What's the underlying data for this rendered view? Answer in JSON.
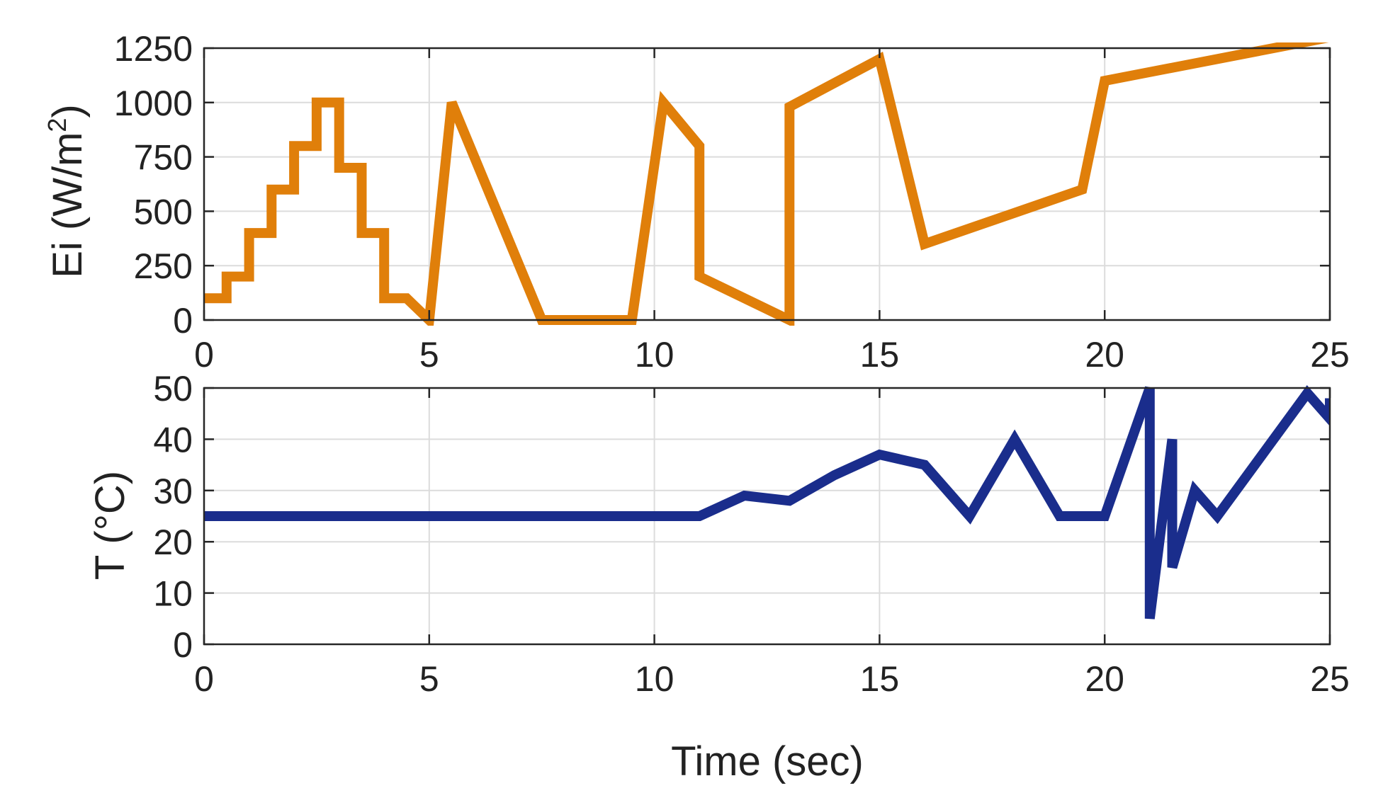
{
  "chart_data": [
    {
      "type": "line",
      "ylabel": "Ei (W/m2)",
      "ylabel_parts": {
        "pre": "Ei (W/m",
        "sup": "2",
        "post": ")"
      },
      "xlabel": "",
      "xlim": [
        0,
        25
      ],
      "ylim": [
        0,
        1250
      ],
      "xticks": [
        0,
        5,
        10,
        15,
        20,
        25
      ],
      "yticks": [
        0,
        250,
        500,
        750,
        1000,
        1250
      ],
      "xtick_labels": [
        "0",
        "5",
        "10",
        "15",
        "20",
        "25"
      ],
      "ytick_labels": [
        "0",
        "250",
        "500",
        "750",
        "1000",
        "1250"
      ],
      "grid": true,
      "series": [
        {
          "color": "#E07F0A",
          "x": [
            0,
            0.5,
            0.5,
            1,
            1,
            1.5,
            1.5,
            2,
            2,
            2.5,
            2.5,
            3,
            3,
            3.5,
            3.5,
            4,
            4,
            4.5,
            5,
            5.5,
            7.5,
            9.5,
            10.2,
            11,
            11,
            13,
            13,
            15,
            16,
            19.5,
            20,
            25
          ],
          "y": [
            100,
            100,
            200,
            200,
            400,
            400,
            600,
            600,
            800,
            800,
            1000,
            1000,
            700,
            700,
            400,
            400,
            100,
            100,
            0,
            1000,
            0,
            0,
            1000,
            800,
            200,
            0,
            980,
            1200,
            350,
            600,
            1100,
            1300
          ]
        }
      ]
    },
    {
      "type": "line",
      "ylabel": "T (°C)",
      "xlabel": "Time (sec)",
      "xlim": [
        0,
        25
      ],
      "ylim": [
        0,
        50
      ],
      "xticks": [
        0,
        5,
        10,
        15,
        20,
        25
      ],
      "yticks": [
        0,
        10,
        20,
        30,
        40,
        50
      ],
      "xtick_labels": [
        "0",
        "5",
        "10",
        "15",
        "20",
        "25"
      ],
      "ytick_labels": [
        "0",
        "10",
        "20",
        "30",
        "40",
        "50"
      ],
      "grid": true,
      "series": [
        {
          "color": "#1A2D8C",
          "x": [
            0,
            11,
            12,
            13,
            14,
            15,
            16,
            17,
            18,
            19,
            20,
            21,
            21,
            21.5,
            21.5,
            22,
            22.5,
            24.5,
            25,
            25
          ],
          "y": [
            25,
            25,
            29,
            28,
            33,
            37,
            35,
            25,
            40,
            25,
            25,
            50,
            5,
            40,
            15,
            30,
            25,
            49,
            44,
            48
          ]
        }
      ]
    }
  ]
}
